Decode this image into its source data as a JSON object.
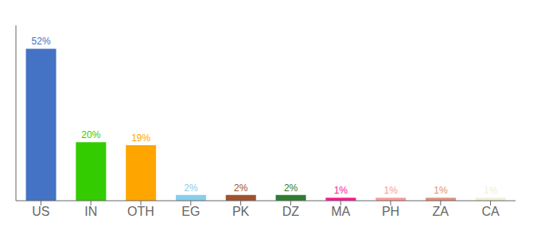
{
  "chart_data": {
    "type": "bar",
    "categories": [
      "US",
      "IN",
      "OTH",
      "EG",
      "PK",
      "DZ",
      "MA",
      "PH",
      "ZA",
      "CA"
    ],
    "values": [
      52,
      20,
      19,
      2,
      2,
      2,
      1,
      1,
      1,
      1
    ],
    "value_labels": [
      "52%",
      "20%",
      "19%",
      "2%",
      "2%",
      "2%",
      "1%",
      "1%",
      "1%",
      "1%"
    ],
    "colors": [
      "#4472C4",
      "#33CC00",
      "#FFA500",
      "#87CEEB",
      "#A0522D",
      "#2E7D32",
      "#FF1493",
      "#FF9999",
      "#E0907A",
      "#F0F0D8"
    ],
    "ylim": [
      0,
      60
    ],
    "data_labels": true,
    "tick_labels": "x",
    "grid": false
  }
}
